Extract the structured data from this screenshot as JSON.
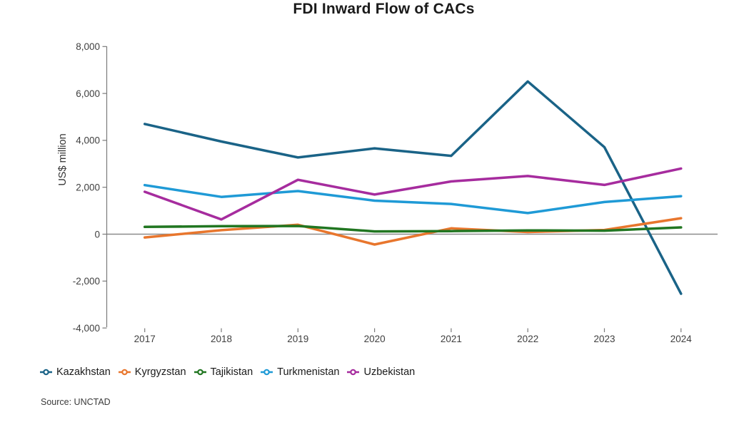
{
  "chart_data": {
    "type": "line",
    "title": "FDI Inward Flow of CACs",
    "ylabel": "US$ million",
    "source": "Source: UNCTAD",
    "categories": [
      2017,
      2018,
      2019,
      2020,
      2021,
      2022,
      2023,
      2024
    ],
    "series": [
      {
        "name": "Kazakhstan",
        "color": "#1a6387",
        "values": [
          4700,
          3950,
          3270,
          3660,
          3340,
          6510,
          3710,
          -2540
        ]
      },
      {
        "name": "Kyrgyzstan",
        "color": "#e8762d",
        "values": [
          -140,
          170,
          400,
          -440,
          250,
          90,
          180,
          680
        ]
      },
      {
        "name": "Tajikistan",
        "color": "#217621",
        "values": [
          310,
          340,
          350,
          120,
          130,
          160,
          150,
          290
        ]
      },
      {
        "name": "Turkmenistan",
        "color": "#1f9ad6",
        "values": [
          2090,
          1590,
          1840,
          1430,
          1290,
          900,
          1370,
          1620
        ]
      },
      {
        "name": "Uzbekistan",
        "color": "#a62c9e",
        "values": [
          1810,
          630,
          2320,
          1690,
          2250,
          2480,
          2100,
          2800
        ]
      }
    ],
    "ylim": [
      -4000,
      8000
    ],
    "yticks": [
      {
        "value": 8000,
        "label": "8,000"
      },
      {
        "value": 6000,
        "label": "6,000"
      },
      {
        "value": 4000,
        "label": "4,000"
      },
      {
        "value": 2000,
        "label": "2,000"
      },
      {
        "value": 0,
        "label": "0"
      },
      {
        "value": -2000,
        "label": "-2,000"
      },
      {
        "value": -4000,
        "label": "-4,000"
      }
    ],
    "grid": "zero-line-only",
    "legend_position": "bottom-left",
    "axis_color": "#7a7a7a",
    "zero_line_color": "#8c8c8c",
    "tick_label_color": "#3f3f3f"
  }
}
